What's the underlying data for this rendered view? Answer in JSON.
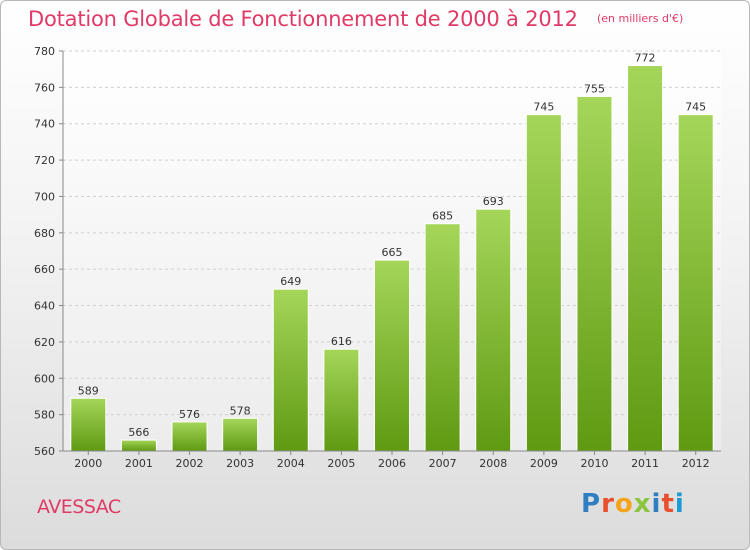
{
  "header": {
    "title": "Dotation Globale de Fonctionnement de 2000 à 2012",
    "subtitle": "(en milliers d'€)"
  },
  "footer": {
    "commune": "AVESSAC",
    "brand": "Proxiti",
    "brand_colors": [
      "#2d7fc1",
      "#e8502d",
      "#f5a31a",
      "#8cc63f",
      "#2d7fc1",
      "#e8502d",
      "#1a9ad6"
    ]
  },
  "chart_data": {
    "type": "bar",
    "title": "Dotation Globale de Fonctionnement de 2000 à 2012",
    "subtitle": "(en milliers d'€)",
    "categories": [
      "2000",
      "2001",
      "2002",
      "2003",
      "2004",
      "2005",
      "2006",
      "2007",
      "2008",
      "2009",
      "2010",
      "2011",
      "2012"
    ],
    "values": [
      589,
      566,
      576,
      578,
      649,
      616,
      665,
      685,
      693,
      745,
      755,
      772,
      745
    ],
    "ylim": [
      560,
      780
    ],
    "yticks": [
      560,
      580,
      600,
      620,
      640,
      660,
      680,
      700,
      720,
      740,
      760,
      780
    ],
    "grid": true,
    "bar_color_top": "#a5d65a",
    "bar_color_bottom": "#5f9a12"
  }
}
